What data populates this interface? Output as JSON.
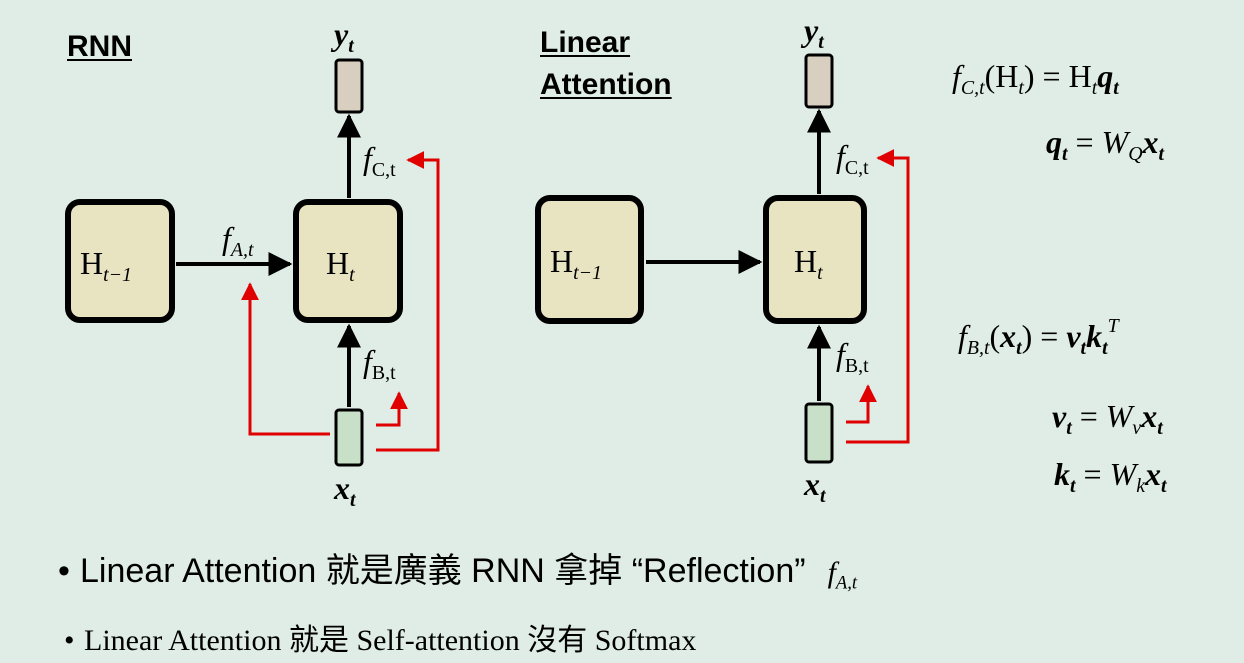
{
  "diagrams": {
    "rnn": {
      "heading": "RNN",
      "box_left": {
        "main": "H",
        "sub": "t−1"
      },
      "box_right": {
        "main": "H",
        "sub": "t"
      },
      "output": {
        "main": "y",
        "sub": "t"
      },
      "input": {
        "main": "x",
        "sub": "t"
      },
      "f_a": {
        "main": "f",
        "sub": "A,t"
      },
      "f_b": {
        "main": "f",
        "sub": "B,t"
      },
      "f_c": {
        "main": "f",
        "sub": "C,t"
      }
    },
    "linear": {
      "heading_line1": "Linear",
      "heading_line2": "Attention",
      "box_left": {
        "main": "H",
        "sub": "t−1"
      },
      "box_right": {
        "main": "H",
        "sub": "t"
      },
      "output": {
        "main": "y",
        "sub": "t"
      },
      "input": {
        "main": "x",
        "sub": "t"
      },
      "f_b": {
        "main": "f",
        "sub": "B,t"
      },
      "f_c": {
        "main": "f",
        "sub": "C,t"
      }
    }
  },
  "equations": {
    "eq1": {
      "lhs_f": "f",
      "lhs_sub": "C,t",
      "arg_main": "H",
      "arg_sub": "t",
      "rhs_main": "H",
      "rhs_sub": "t",
      "rhs_vec": "q",
      "rhs_vec_sub": "t"
    },
    "eq2": {
      "lhs": "q",
      "lhs_sub": "t",
      "rhs_w": "W",
      "rhs_w_sub": "Q",
      "rhs_vec": "x",
      "rhs_vec_sub": "t"
    },
    "eq3": {
      "lhs_f": "f",
      "lhs_sub": "B,t",
      "arg": "x",
      "arg_sub": "t",
      "v": "v",
      "v_sub": "t",
      "k": "k",
      "k_sub": "t",
      "sup": "T"
    },
    "eq4": {
      "lhs": "v",
      "lhs_sub": "t",
      "rhs_w": "W",
      "rhs_w_sub": "v",
      "rhs_vec": "x",
      "rhs_vec_sub": "t"
    },
    "eq5": {
      "lhs": "k",
      "lhs_sub": "t",
      "rhs_w": "W",
      "rhs_w_sub": "k",
      "rhs_vec": "x",
      "rhs_vec_sub": "t"
    }
  },
  "bullets": [
    {
      "text": "Linear Attention 就是廣義 RNN 拿掉 “Reflection”",
      "math_main": "f",
      "math_sub": "A,t"
    },
    {
      "text": "Linear Attention 就是 Self-attention 沒有 Softmax"
    }
  ],
  "colors": {
    "background": "#dfede6",
    "state_box_fill": "#e8e4c2",
    "output_fill": "#d9cfc1",
    "input_fill": "#c9e0c8",
    "feedback_arrow": "#e00000",
    "arrow": "#000000"
  }
}
